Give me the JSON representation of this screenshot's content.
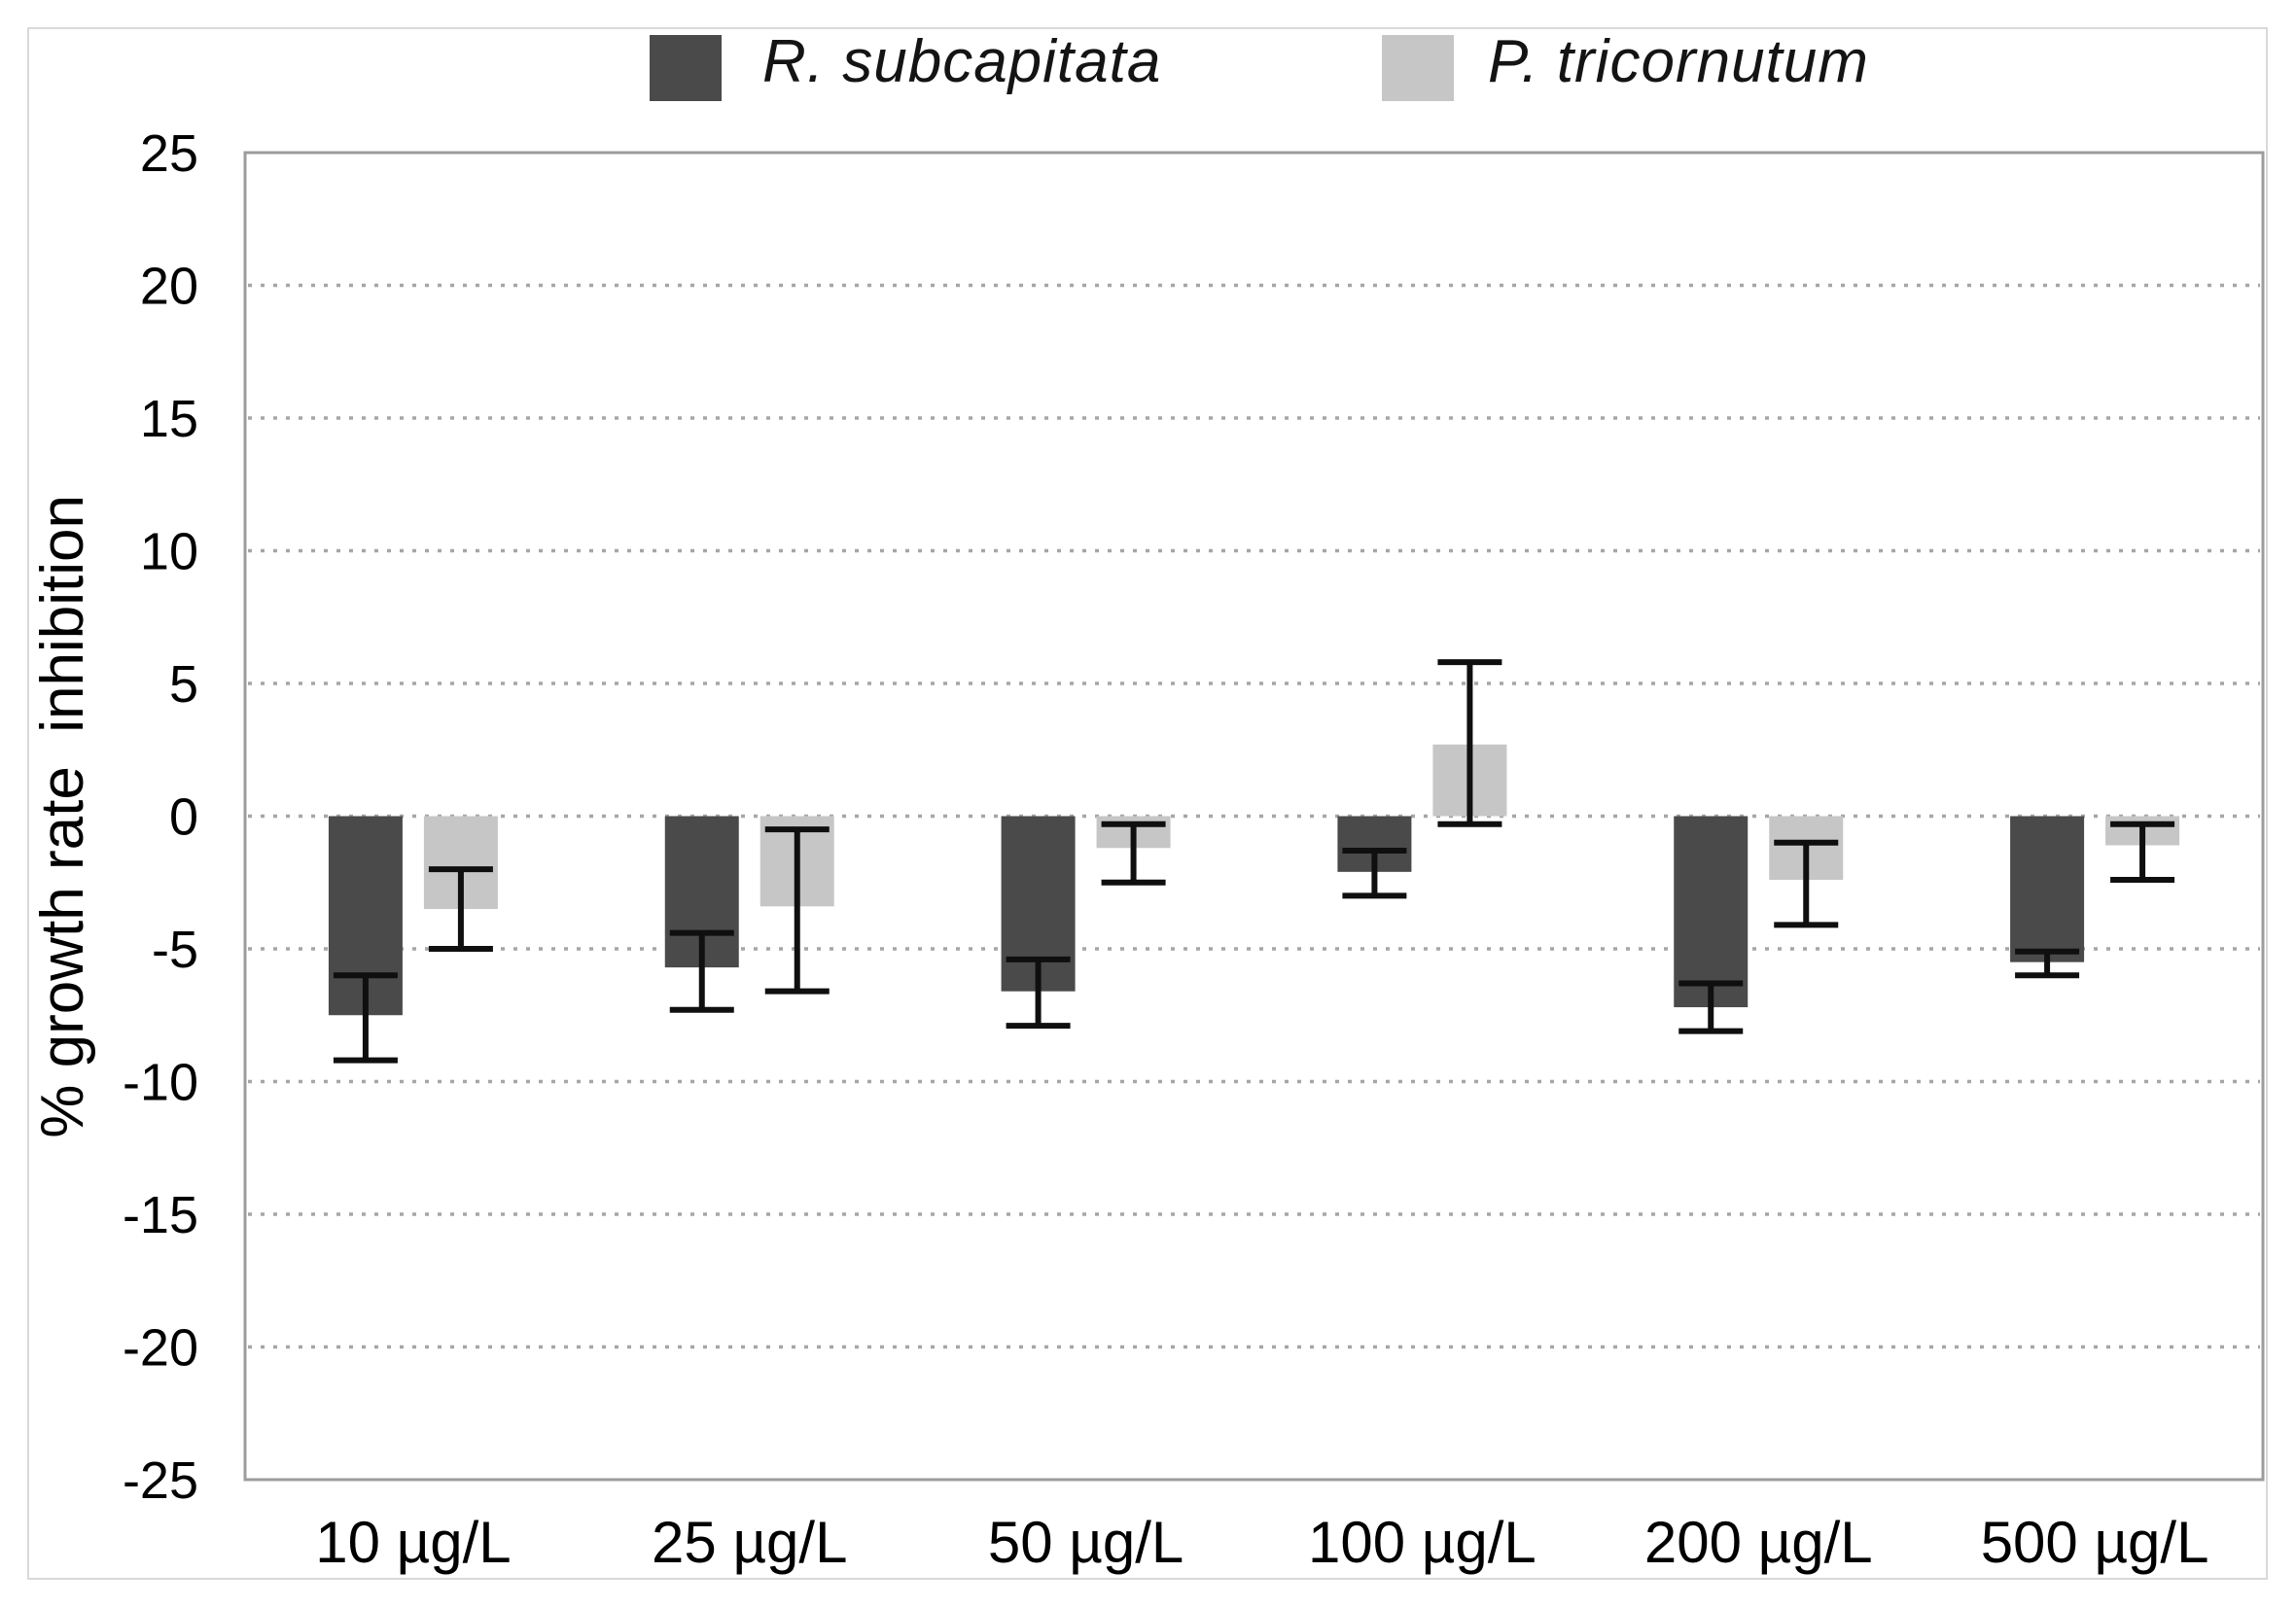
{
  "chart_data": {
    "type": "bar",
    "title": "",
    "xlabel": "",
    "ylabel": "% growth rate  inhibition",
    "categories": [
      "10 µg/L",
      "25 µg/L",
      "50 µg/L",
      "100 µg/L",
      "200 µg/L",
      "500 µg/L"
    ],
    "ylim": [
      -25,
      25
    ],
    "yticks": [
      25,
      20,
      15,
      10,
      5,
      0,
      -5,
      -10,
      -15,
      -20,
      -25
    ],
    "grid": "dotted-horizontal",
    "legend_position": "top",
    "error_bar_color": "#0f0f0f",
    "frame_color": "#9c9c9c",
    "series": [
      {
        "name": "R. subcapitata",
        "color": "#4a4a4a",
        "values": [
          -7.5,
          -5.7,
          -6.6,
          -2.1,
          -7.2,
          -5.5
        ],
        "error_high": [
          -6.0,
          -4.4,
          -5.4,
          -1.3,
          -6.3,
          -5.1
        ],
        "error_low": [
          -9.2,
          -7.3,
          -7.9,
          -3.0,
          -8.1,
          -6.0
        ]
      },
      {
        "name": "P. tricornutum",
        "color": "#c6c6c6",
        "values": [
          -3.5,
          -3.4,
          -1.2,
          2.7,
          -2.4,
          -1.1
        ],
        "error_high": [
          -2.0,
          -0.5,
          -0.3,
          5.8,
          -1.0,
          -0.3
        ],
        "error_low": [
          -5.0,
          -6.6,
          -2.5,
          -0.3,
          -4.1,
          -2.4
        ]
      }
    ]
  }
}
